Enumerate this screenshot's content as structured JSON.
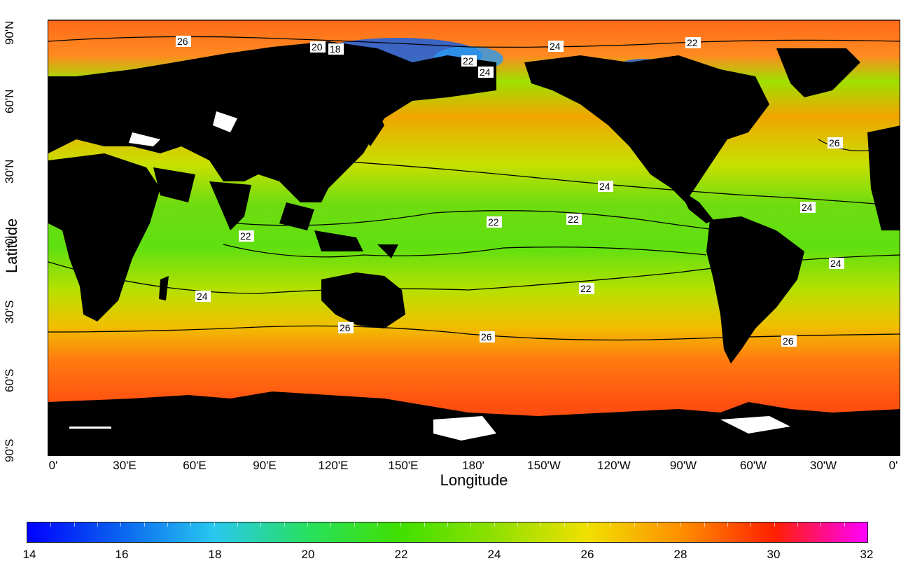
{
  "map": {
    "xlabel": "Longitude",
    "ylabel": "Latitude",
    "lon_ticks": [
      "0'",
      "30'E",
      "60'E",
      "90'E",
      "120'E",
      "150'E",
      "180'",
      "150'W",
      "120'W",
      "90'W",
      "60'W",
      "30'W",
      "0'"
    ],
    "lat_ticks": [
      "90'N",
      "60'N",
      "30'N",
      "0'",
      "30'S",
      "60'S",
      "90'S"
    ],
    "contour_labels": [
      "26",
      "20",
      "18",
      "22",
      "24",
      "24",
      "22",
      "26",
      "24",
      "22",
      "22",
      "22",
      "24",
      "24",
      "24",
      "26",
      "26",
      "26",
      "22"
    ]
  },
  "colorbar": {
    "ticks": [
      "14",
      "16",
      "18",
      "20",
      "22",
      "24",
      "26",
      "28",
      "30",
      "32"
    ],
    "colors": [
      "#0000ff",
      "#0a64f0",
      "#28c8f0",
      "#28e060",
      "#40e000",
      "#90e000",
      "#f0e000",
      "#ff9000",
      "#ff2000",
      "#ff00ff"
    ]
  }
}
